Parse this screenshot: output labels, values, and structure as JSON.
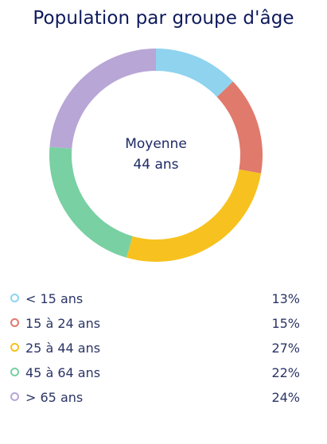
{
  "title": "Population par groupe d'âge",
  "center": {
    "line1": "Moyenne",
    "line2": "44 ans"
  },
  "chart_data": {
    "type": "pie",
    "donut": true,
    "title": "Population par groupe d'âge",
    "categories": [
      "< 15 ans",
      "15 à 24 ans",
      "25 à 44 ans",
      "45 à 64 ans",
      "> 65 ans"
    ],
    "values": [
      13,
      15,
      27,
      22,
      24
    ],
    "value_labels": [
      "13%",
      "15%",
      "27%",
      "22%",
      "24%"
    ],
    "colors": [
      "#8fd3ef",
      "#e07a6c",
      "#f7c21f",
      "#79d0a2",
      "#b8a6d6"
    ],
    "center_text": [
      "Moyenne",
      "44 ans"
    ],
    "legend_placement": "bottom"
  }
}
